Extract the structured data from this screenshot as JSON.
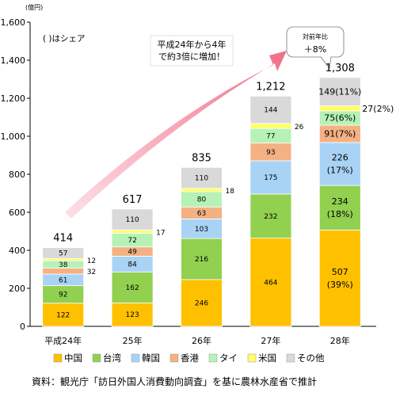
{
  "chart_data": {
    "type": "bar",
    "stacked": true,
    "unit_label": "(億円)",
    "share_note": "(  )はシェア",
    "categories": [
      "平成24年",
      "25年",
      "26年",
      "27年",
      "28年"
    ],
    "ylim": [
      0,
      1600
    ],
    "yticks": [
      0,
      200,
      400,
      600,
      800,
      1000,
      1200,
      1400,
      1600
    ],
    "ytick_labels": [
      "0",
      "200",
      "400",
      "600",
      "800",
      "1,000",
      "1,200",
      "1,400",
      "1,600"
    ],
    "grid": false,
    "series": [
      {
        "name": "中国",
        "color": "#ffc000",
        "values": [
          122,
          123,
          246,
          464,
          507
        ],
        "labels": [
          "122",
          "123",
          "246",
          "464",
          "507\n(39%)"
        ]
      },
      {
        "name": "台湾",
        "color": "#92d050",
        "values": [
          92,
          162,
          216,
          232,
          234
        ],
        "labels": [
          "92",
          "162",
          "216",
          "232",
          "234\n(18%)"
        ]
      },
      {
        "name": "韓国",
        "color": "#a9d3f5",
        "values": [
          61,
          84,
          103,
          175,
          226
        ],
        "labels": [
          "61",
          "84",
          "103",
          "175",
          "226\n(17%)"
        ]
      },
      {
        "name": "香港",
        "color": "#f4b183",
        "values": [
          32,
          49,
          63,
          93,
          91
        ],
        "labels": [
          "32",
          "49",
          "63",
          "93",
          "91(7%)"
        ]
      },
      {
        "name": "タイ",
        "color": "#b6f2b6",
        "values": [
          38,
          72,
          80,
          77,
          75
        ],
        "labels": [
          "38",
          "72",
          "80",
          "77",
          "75(6%)"
        ]
      },
      {
        "name": "米国",
        "color": "#ffff66",
        "values": [
          12,
          17,
          18,
          26,
          27
        ],
        "labels": [
          "12",
          "17",
          "18",
          "26",
          "27(2%)"
        ]
      },
      {
        "name": "その他",
        "color": "#d9d9d9",
        "values": [
          57,
          110,
          110,
          144,
          149
        ],
        "labels": [
          "57",
          "110",
          "110",
          "144",
          "149(11%)"
        ]
      }
    ],
    "totals": [
      "414",
      "617",
      "835",
      "1,212",
      "1,308"
    ],
    "legend_position": "bottom",
    "annotations": {
      "arrow_text": "平成24年から4年\nで約3倍に増加！",
      "callout_title": "対前年比",
      "callout_value": "＋8%"
    },
    "source": "資料：観光庁「訪日外国人消費動向調査」を基に農林水産省で推計"
  }
}
